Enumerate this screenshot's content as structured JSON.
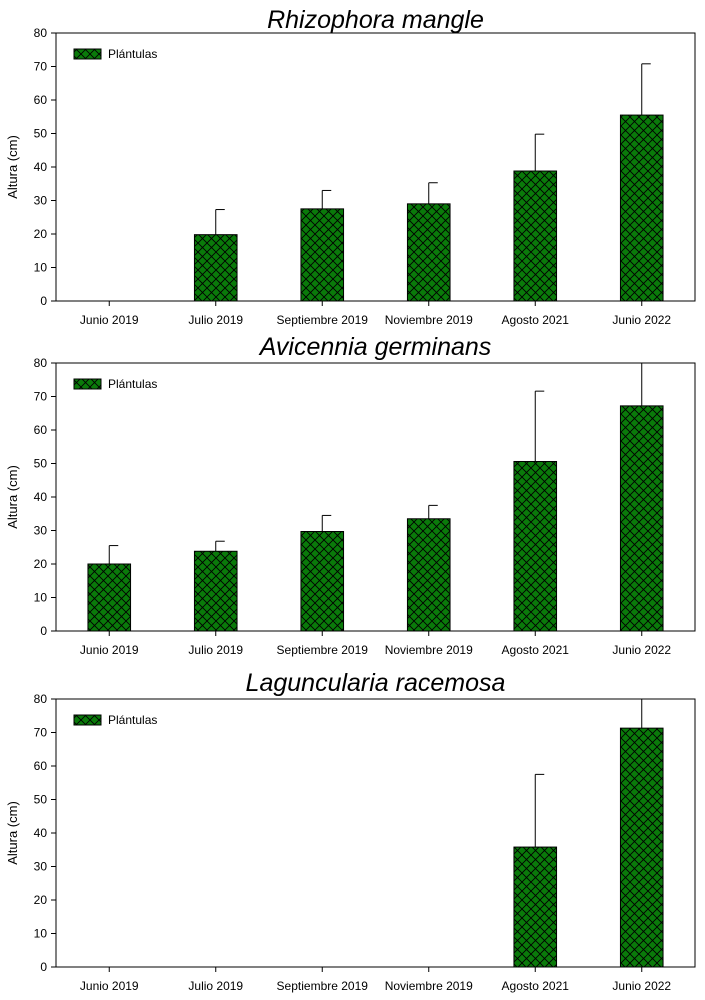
{
  "legend_label": "Plántulas",
  "bar_fill": "#0a7a0a",
  "hatch_color": "#000000",
  "chart_data": [
    {
      "type": "bar",
      "title": "Rhizophora mangle",
      "xlabel": "",
      "ylabel": "Altura (cm)",
      "ylim": [
        0,
        80
      ],
      "yticks": [
        0,
        10,
        20,
        30,
        40,
        50,
        60,
        70,
        80
      ],
      "categories": [
        "Junio 2019",
        "Julio 2019",
        "Septiembre 2019",
        "Noviembre 2019",
        "Agosto 2021",
        "Junio 2022"
      ],
      "series": [
        {
          "name": "Plántulas",
          "values": [
            0,
            19.8,
            27.5,
            29,
            38.8,
            55.5
          ],
          "error_upper": [
            0,
            7.5,
            5.5,
            6.3,
            11,
            15.3
          ]
        }
      ],
      "legend": "top-left"
    },
    {
      "type": "bar",
      "title": "Avicennia germinans",
      "xlabel": "",
      "ylabel": "Altura (cm)",
      "ylim": [
        0,
        80
      ],
      "yticks": [
        0,
        10,
        20,
        30,
        40,
        50,
        60,
        70,
        80
      ],
      "categories": [
        "Junio 2019",
        "Julio 2019",
        "Septiembre 2019",
        "Noviembre 2019",
        "Agosto 2021",
        "Junio 2022"
      ],
      "series": [
        {
          "name": "Plántulas",
          "values": [
            20,
            23.8,
            29.7,
            33.5,
            50.6,
            67.2
          ],
          "error_upper": [
            5.5,
            3,
            4.8,
            4,
            21,
            14
          ]
        }
      ],
      "legend": "top-left"
    },
    {
      "type": "bar",
      "title": "Laguncularia racemosa",
      "xlabel": "",
      "ylabel": "Altura (cm)",
      "ylim": [
        0,
        80
      ],
      "yticks": [
        0,
        10,
        20,
        30,
        40,
        50,
        60,
        70,
        80
      ],
      "categories": [
        "Junio 2019",
        "Julio 2019",
        "Septiembre 2019",
        "Noviembre 2019",
        "Agosto 2021",
        "Junio 2022"
      ],
      "series": [
        {
          "name": "Plántulas",
          "values": [
            0,
            0,
            0,
            0,
            35.8,
            71.3
          ],
          "error_upper": [
            0,
            0,
            0,
            0,
            21.7,
            12
          ]
        }
      ],
      "legend": "top-left"
    }
  ]
}
